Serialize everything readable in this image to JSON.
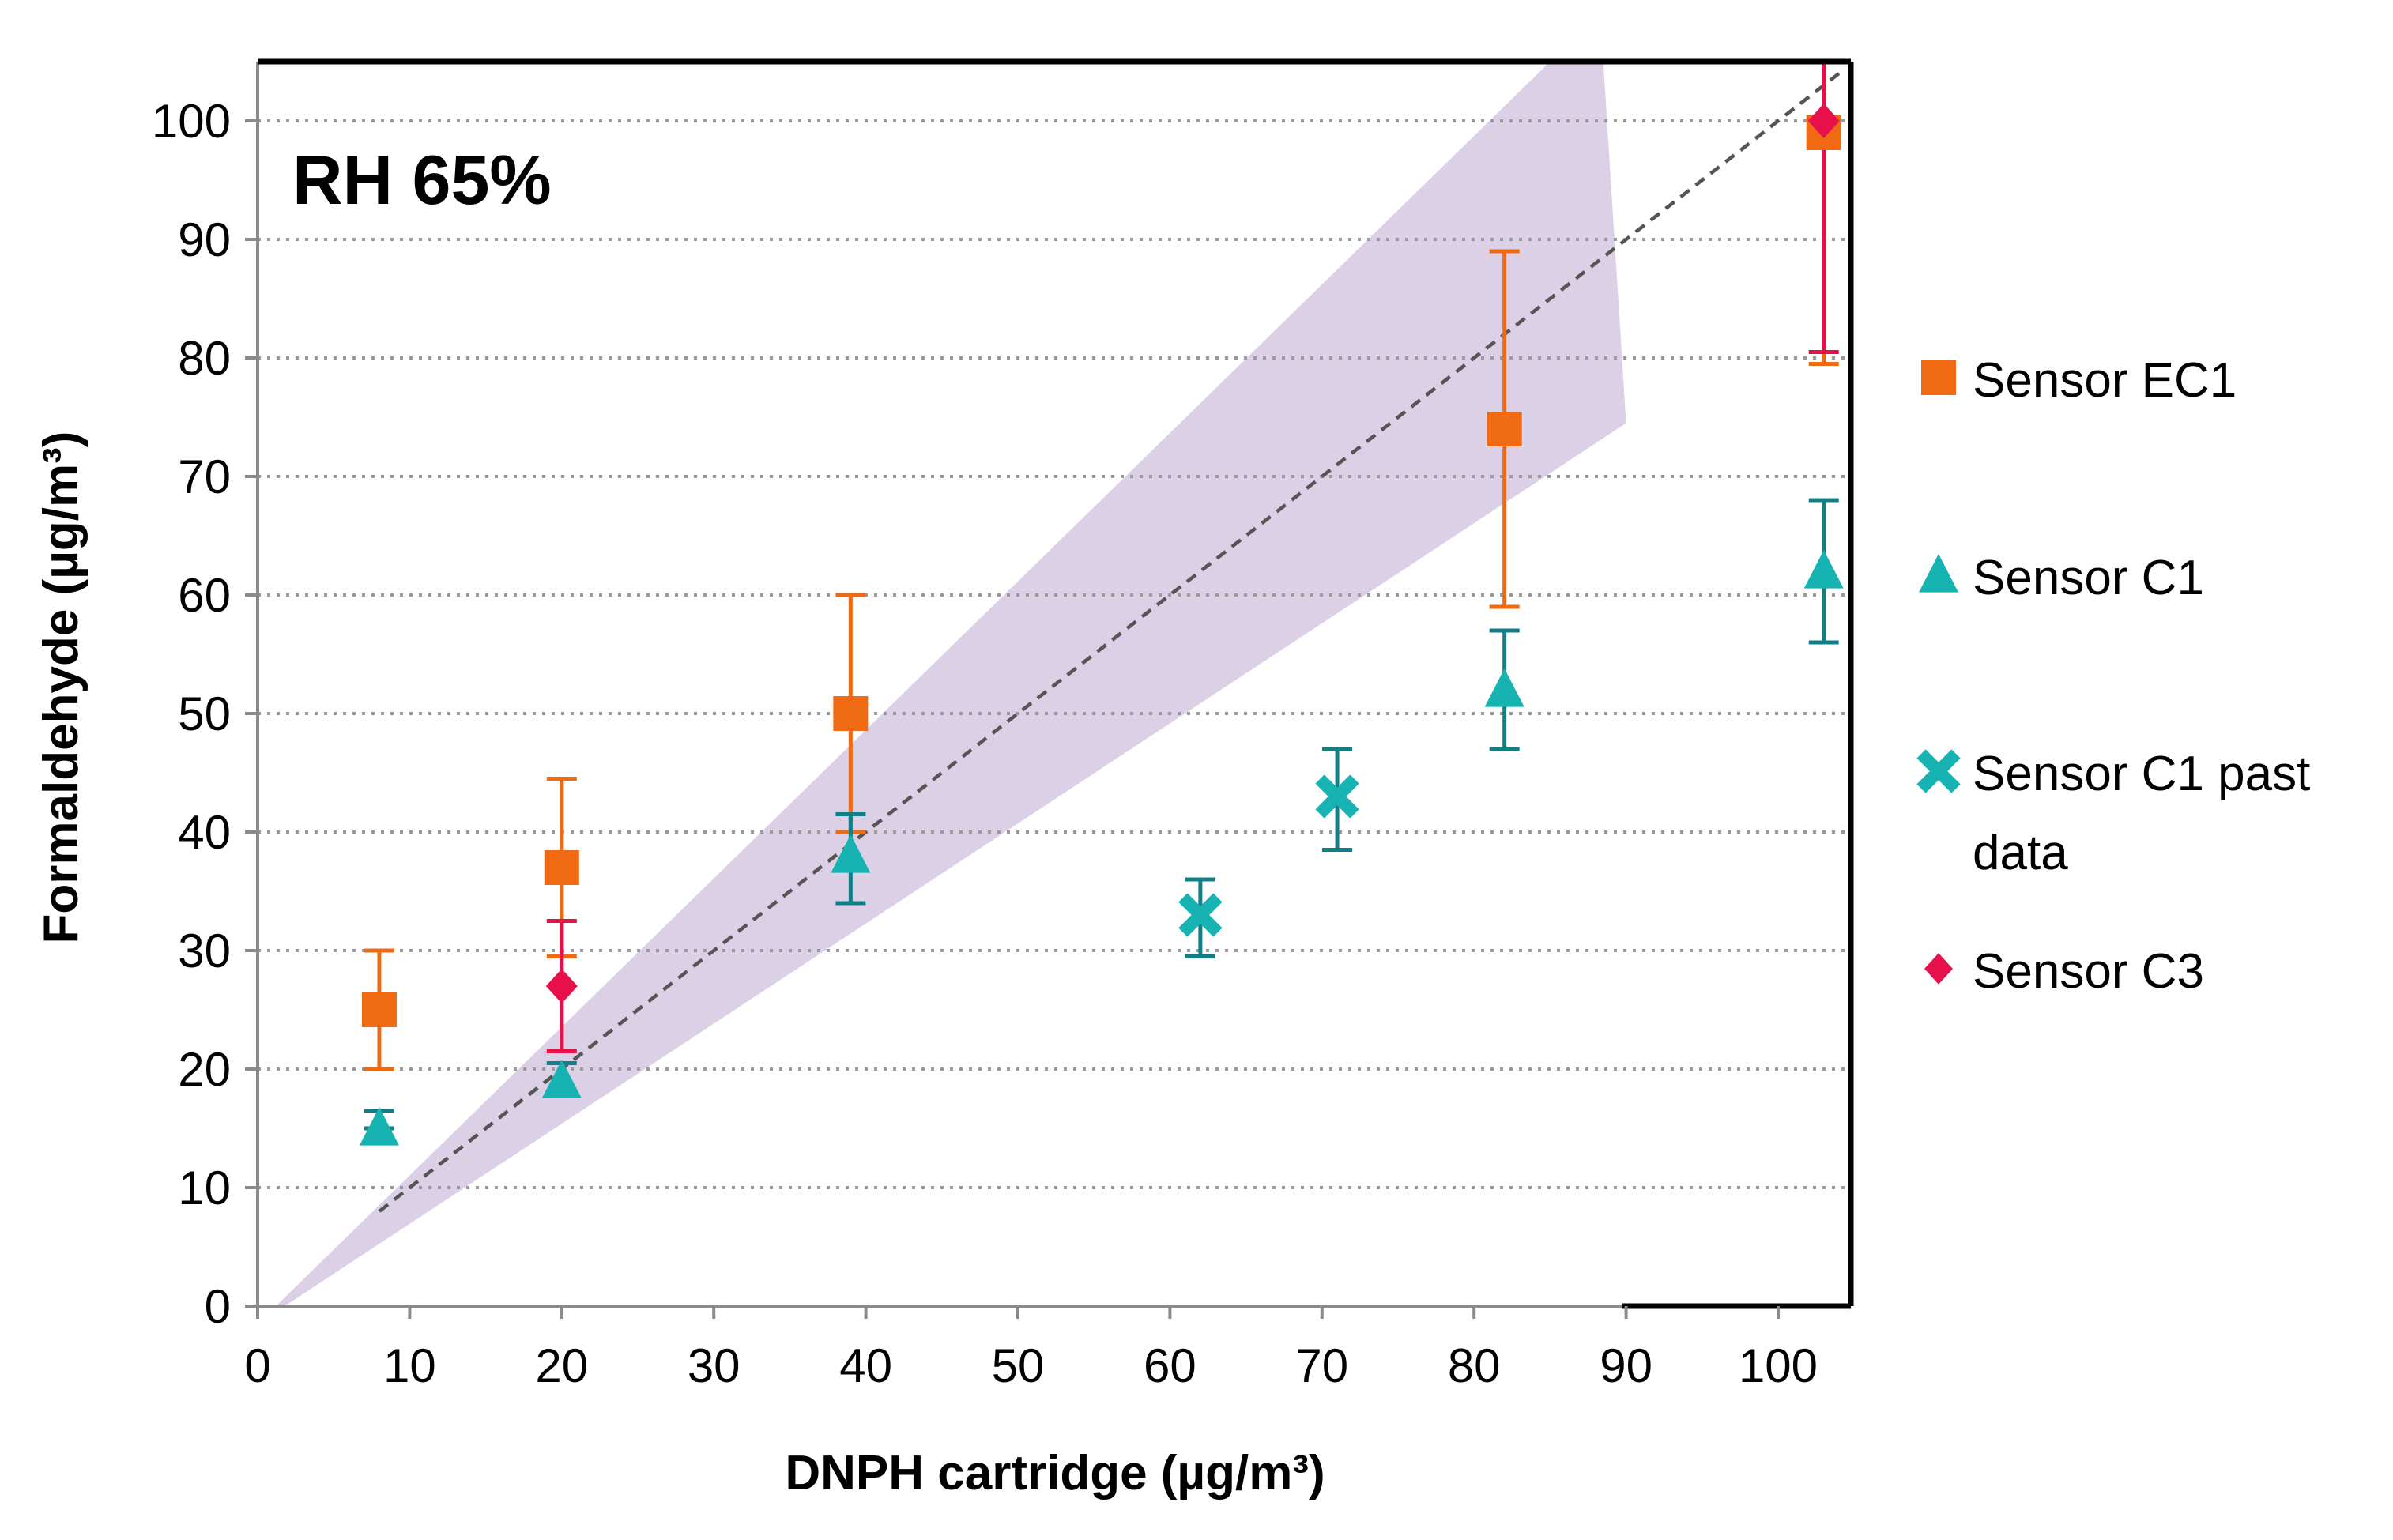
{
  "chart_data": {
    "type": "scatter",
    "annotation": "RH 65%",
    "xlabel": "DNPH cartridge (µg/m³)",
    "ylabel": "Formaldehyde (µg/m³)",
    "xlim": [
      0,
      105
    ],
    "ylim": [
      0,
      105
    ],
    "x_ticks": [
      0,
      10,
      20,
      30,
      40,
      50,
      60,
      70,
      80,
      90,
      100
    ],
    "y_ticks": [
      0,
      10,
      20,
      30,
      40,
      50,
      60,
      70,
      80,
      90,
      100
    ],
    "grid": "horizontal dotted",
    "legend_position": "right",
    "identity_line": {
      "from": [
        8,
        8
      ],
      "to": [
        104,
        104
      ],
      "style": "dashed"
    },
    "band": {
      "description": "shaded tolerance band",
      "polygon": [
        [
          0,
          -1.5
        ],
        [
          85,
          105
        ],
        [
          88.5,
          105
        ],
        [
          90,
          74.5
        ],
        [
          0,
          -1.5
        ]
      ],
      "color": "#dcd0e6"
    },
    "series": [
      {
        "name": "Sensor EC1",
        "marker": "square",
        "color": "#f06a14",
        "points": [
          {
            "x": 8,
            "y": 25,
            "yerr_low": 20,
            "yerr_high": 30
          },
          {
            "x": 20,
            "y": 37,
            "yerr_low": 29.5,
            "yerr_high": 44.5
          },
          {
            "x": 39,
            "y": 50,
            "yerr_low": 40,
            "yerr_high": 60
          },
          {
            "x": 82,
            "y": 74,
            "yerr_low": 59,
            "yerr_high": 89
          },
          {
            "x": 103,
            "y": 99,
            "yerr_low": 79.5,
            "yerr_high": 105
          }
        ]
      },
      {
        "name": "Sensor C1",
        "marker": "triangle",
        "color": "#17b3b3",
        "errcolor": "#127f87",
        "points": [
          {
            "x": 8,
            "y": 15,
            "yerr_low": 15,
            "yerr_high": 16.5
          },
          {
            "x": 20,
            "y": 19,
            "yerr_low": 18,
            "yerr_high": 20.5
          },
          {
            "x": 39,
            "y": 38,
            "yerr_low": 34,
            "yerr_high": 41.5
          },
          {
            "x": 82,
            "y": 52,
            "yerr_low": 47,
            "yerr_high": 57
          },
          {
            "x": 103,
            "y": 62,
            "yerr_low": 56,
            "yerr_high": 68
          }
        ]
      },
      {
        "name": "Sensor C1 past data",
        "legend_lines": [
          "Sensor C1 past",
          "data"
        ],
        "marker": "x",
        "color": "#17b3b3",
        "errcolor": "#127f87",
        "points": [
          {
            "x": 62,
            "y": 33,
            "yerr_low": 29.5,
            "yerr_high": 36
          },
          {
            "x": 71,
            "y": 43,
            "yerr_low": 38.5,
            "yerr_high": 47
          }
        ]
      },
      {
        "name": "Sensor C3",
        "marker": "diamond",
        "color": "#e8104a",
        "points": [
          {
            "x": 20,
            "y": 27,
            "yerr_low": 21.5,
            "yerr_high": 32.5
          },
          {
            "x": 103,
            "y": 100,
            "yerr_low": 80.5,
            "yerr_high": 105
          }
        ]
      }
    ]
  }
}
